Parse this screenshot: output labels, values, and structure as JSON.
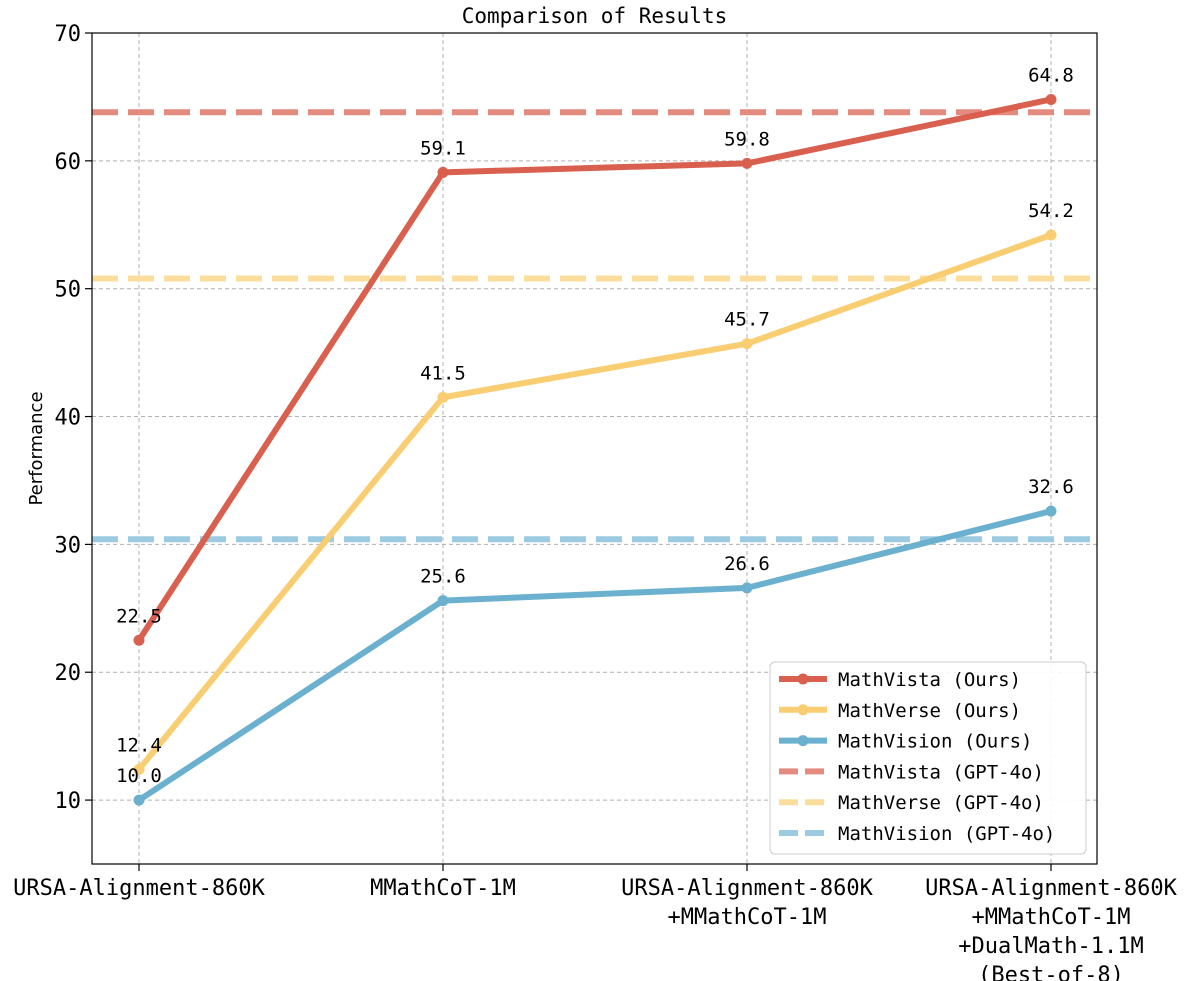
{
  "chart_data": {
    "type": "line",
    "title": "Comparison of Results",
    "xlabel": "",
    "ylabel": "Performance",
    "ylim": [
      5,
      70
    ],
    "yticks": [
      10,
      20,
      30,
      40,
      50,
      60,
      70
    ],
    "grid": true,
    "legend_position": "bottom-right",
    "categories": [
      [
        "URSA-Alignment-860K"
      ],
      [
        "MMathCoT-1M"
      ],
      [
        "URSA-Alignment-860K",
        "+MMathCoT-1M"
      ],
      [
        "URSA-Alignment-860K",
        "+MMathCoT-1M",
        "+DualMath-1.1M",
        "(Best-of-8)"
      ]
    ],
    "series": [
      {
        "name": "MathVista (Ours)",
        "values": [
          22.5,
          59.1,
          59.8,
          64.8
        ],
        "labels": [
          "22.5",
          "59.1",
          "59.8",
          "64.8"
        ],
        "color": "#d95f4e"
      },
      {
        "name": "MathVerse (Ours)",
        "values": [
          12.4,
          41.5,
          45.7,
          54.2
        ],
        "labels": [
          "12.4",
          "41.5",
          "45.7",
          "54.2"
        ],
        "color": "#f9cd72"
      },
      {
        "name": "MathVision (Ours)",
        "values": [
          10.0,
          25.6,
          26.6,
          32.6
        ],
        "labels": [
          "10.0",
          "25.6",
          "26.6",
          "32.6"
        ],
        "color": "#6bb1cf"
      }
    ],
    "reference_lines": [
      {
        "name": "MathVista (GPT-4o)",
        "value": 63.8,
        "color": "#e48b7f"
      },
      {
        "name": "MathVerse (GPT-4o)",
        "value": 50.8,
        "color": "#fbde9c"
      },
      {
        "name": "MathVision (GPT-4o)",
        "value": 30.4,
        "color": "#9ccae0"
      }
    ]
  }
}
